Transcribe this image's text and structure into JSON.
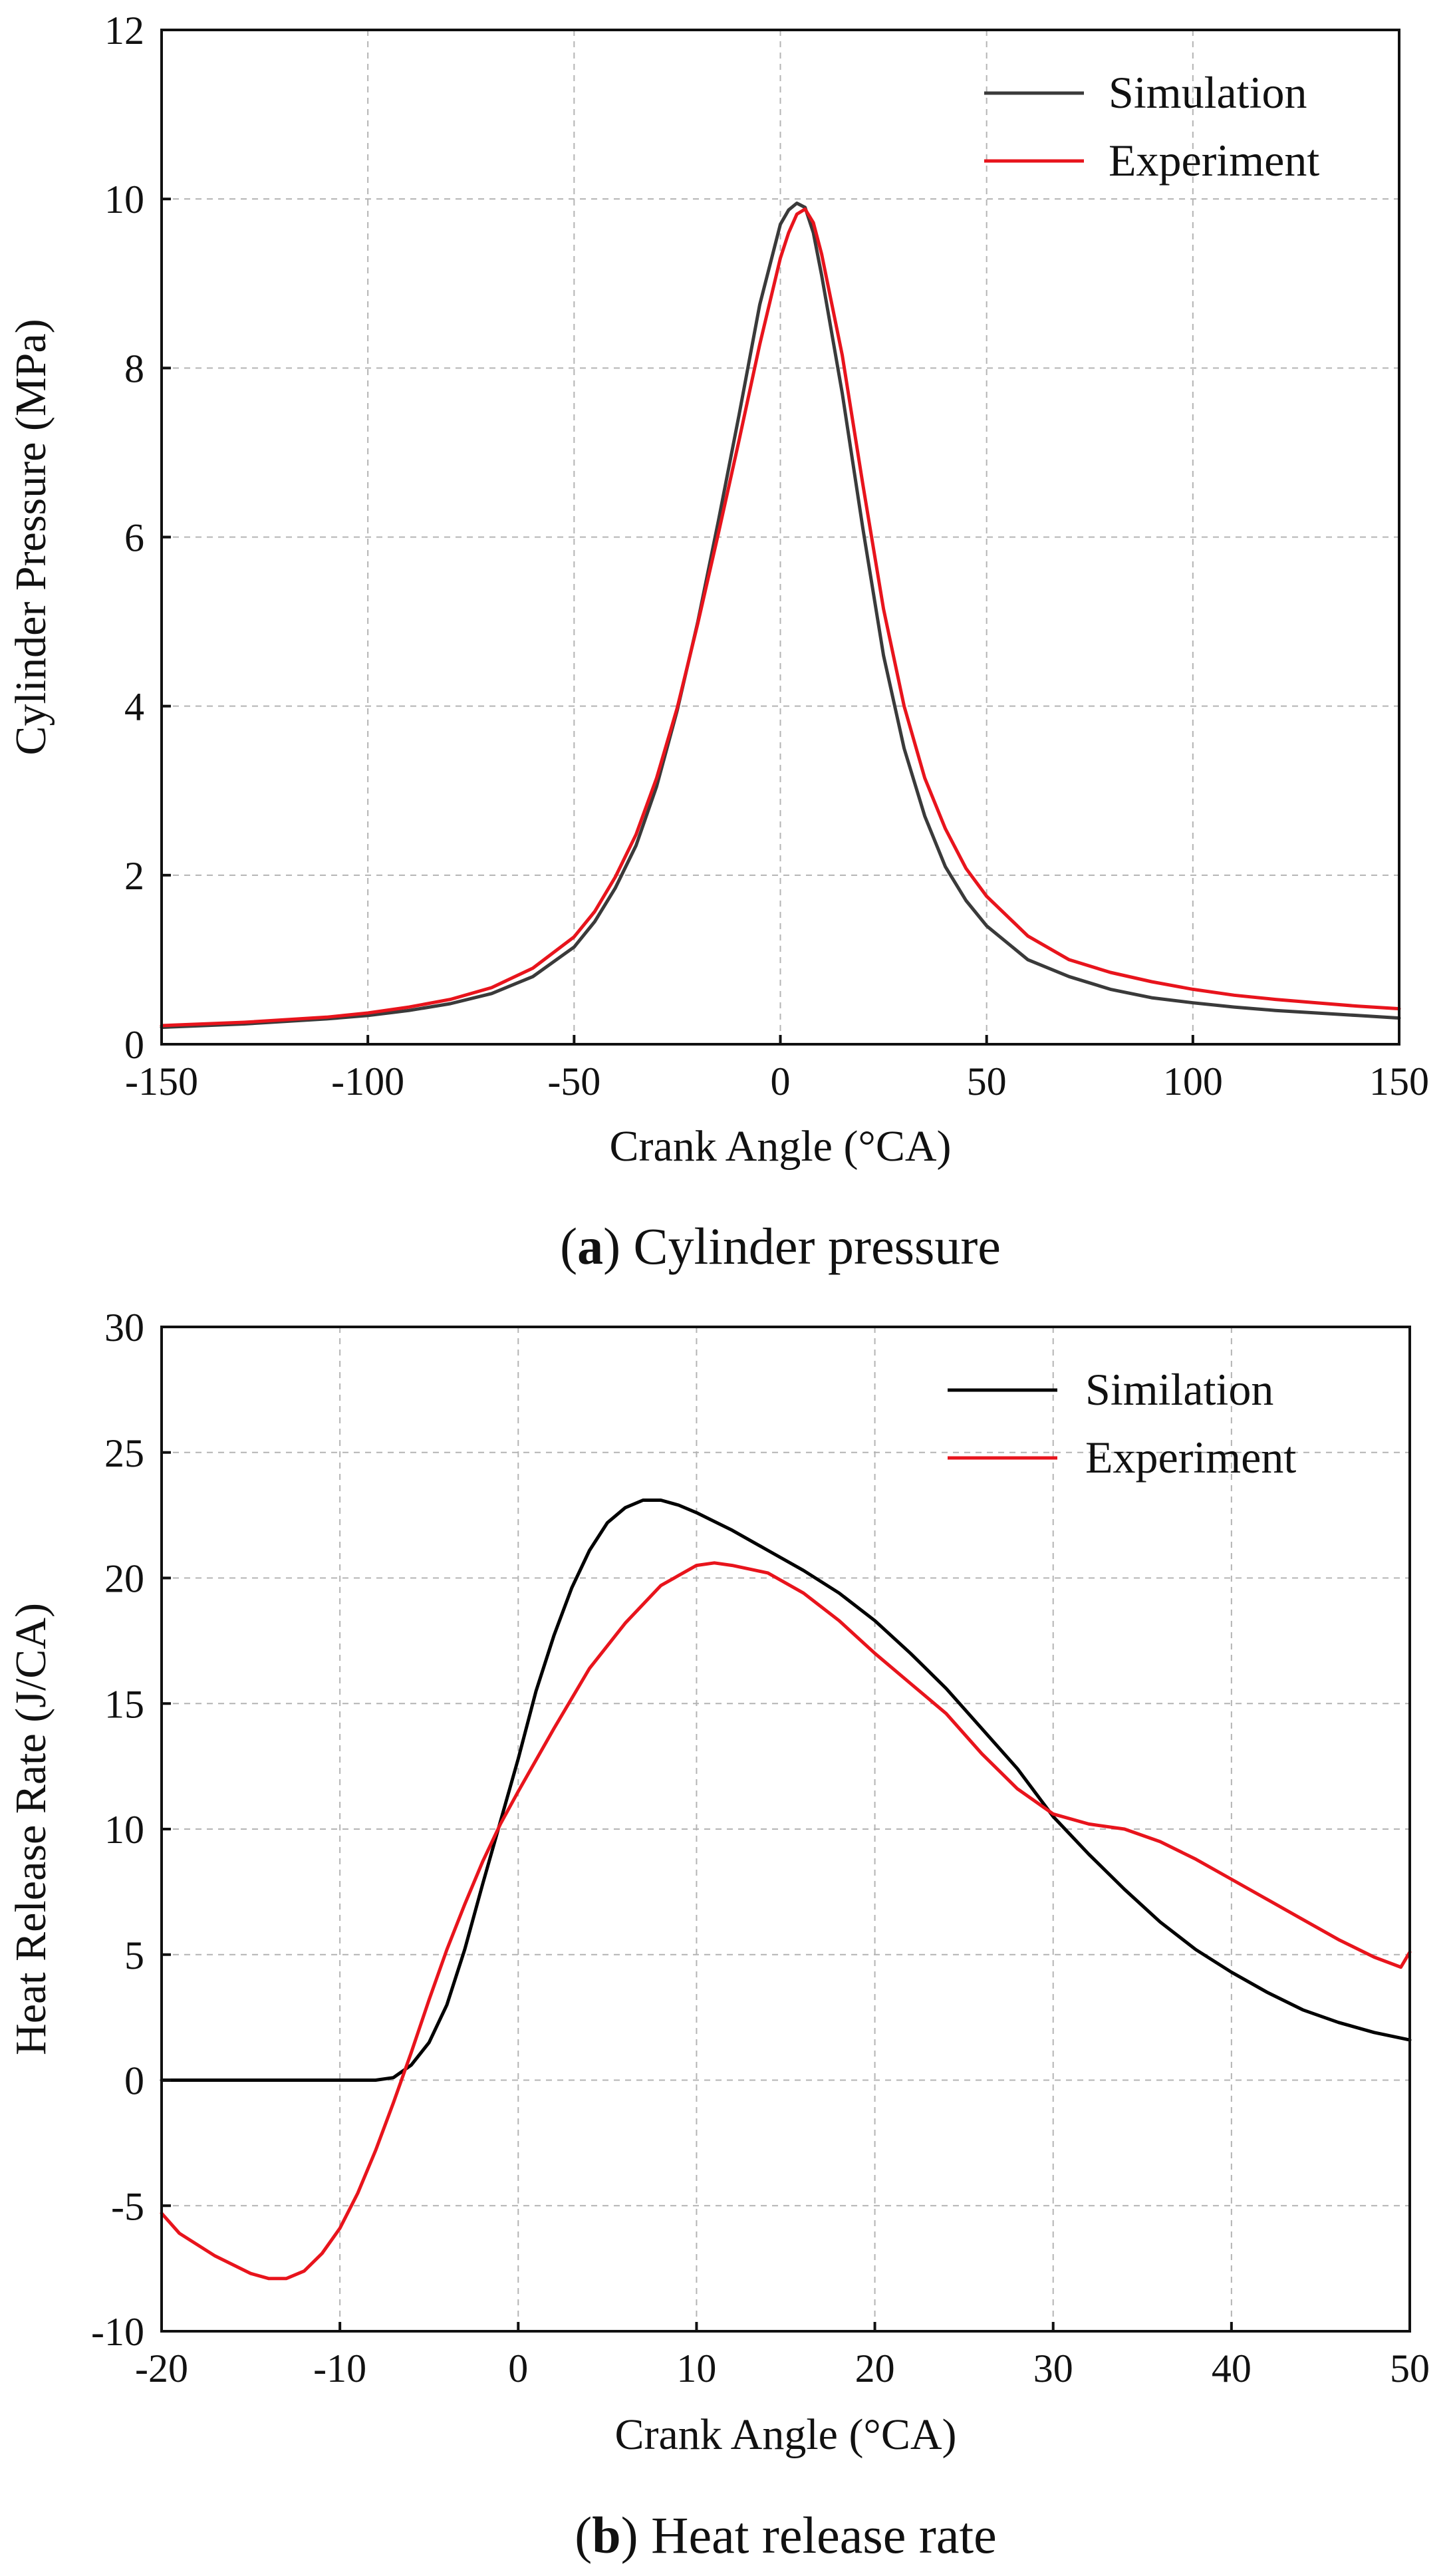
{
  "chart_data": [
    {
      "id": "a",
      "type": "line",
      "caption_letter": "a",
      "caption_text": "Cylinder pressure",
      "xlabel": "Crank Angle (°CA)",
      "ylabel": "Cylinder Pressure (MPa)",
      "xlim": [
        -150,
        150
      ],
      "ylim": [
        0,
        12
      ],
      "xticks": [
        -150,
        -100,
        -50,
        0,
        50,
        100,
        150
      ],
      "yticks": [
        0,
        2,
        4,
        6,
        8,
        10,
        12
      ],
      "grid": true,
      "legend_position": "top-right",
      "series": [
        {
          "name": "Simulation",
          "color": "#3a3a3a",
          "x": [
            -150,
            -130,
            -110,
            -100,
            -90,
            -80,
            -70,
            -60,
            -50,
            -45,
            -40,
            -35,
            -30,
            -25,
            -20,
            -15,
            -10,
            -5,
            0,
            2,
            4,
            6,
            8,
            10,
            15,
            20,
            25,
            30,
            35,
            40,
            45,
            50,
            60,
            70,
            80,
            90,
            100,
            110,
            120,
            130,
            140,
            150
          ],
          "y": [
            0.2,
            0.24,
            0.3,
            0.34,
            0.4,
            0.48,
            0.6,
            0.8,
            1.15,
            1.45,
            1.85,
            2.35,
            3.05,
            3.95,
            5.0,
            6.2,
            7.45,
            8.75,
            9.7,
            9.87,
            9.95,
            9.9,
            9.6,
            9.1,
            7.7,
            6.1,
            4.6,
            3.5,
            2.7,
            2.1,
            1.7,
            1.4,
            1.0,
            0.8,
            0.65,
            0.55,
            0.49,
            0.44,
            0.4,
            0.37,
            0.34,
            0.31
          ]
        },
        {
          "name": "Experiment",
          "color": "#e8141c",
          "x": [
            -150,
            -130,
            -110,
            -100,
            -90,
            -80,
            -70,
            -60,
            -50,
            -45,
            -40,
            -35,
            -30,
            -25,
            -20,
            -15,
            -10,
            -5,
            0,
            2,
            4,
            6,
            8,
            10,
            15,
            20,
            25,
            30,
            35,
            40,
            45,
            50,
            60,
            70,
            80,
            90,
            100,
            110,
            120,
            130,
            140,
            150
          ],
          "y": [
            0.22,
            0.26,
            0.32,
            0.37,
            0.44,
            0.53,
            0.67,
            0.9,
            1.27,
            1.57,
            1.98,
            2.48,
            3.15,
            3.98,
            4.98,
            6.05,
            7.15,
            8.28,
            9.3,
            9.6,
            9.82,
            9.88,
            9.72,
            9.35,
            8.15,
            6.62,
            5.15,
            4.0,
            3.15,
            2.55,
            2.08,
            1.75,
            1.28,
            1.0,
            0.85,
            0.74,
            0.65,
            0.58,
            0.53,
            0.49,
            0.45,
            0.42
          ]
        }
      ]
    },
    {
      "id": "b",
      "type": "line",
      "caption_letter": "b",
      "caption_text": "Heat release rate",
      "xlabel": "Crank Angle (°CA)",
      "ylabel": "Heat Release Rate (J/CA)",
      "xlim": [
        -20,
        50
      ],
      "ylim": [
        -10,
        30
      ],
      "xticks": [
        -20,
        -10,
        0,
        10,
        20,
        30,
        40,
        50
      ],
      "yticks": [
        -10,
        -5,
        0,
        5,
        10,
        15,
        20,
        25,
        30
      ],
      "grid": true,
      "legend_position": "top-right",
      "series": [
        {
          "name": "Similation",
          "color": "#000000",
          "x": [
            -20,
            -10,
            -8,
            -7,
            -6,
            -5,
            -4,
            -3,
            -2,
            -1,
            0,
            1,
            2,
            3,
            4,
            5,
            6,
            7,
            8,
            9,
            10,
            12,
            14,
            16,
            18,
            20,
            22,
            24,
            26,
            28,
            30,
            32,
            34,
            36,
            38,
            40,
            42,
            44,
            46,
            48,
            50
          ],
          "y": [
            0,
            0,
            0,
            0.1,
            0.6,
            1.5,
            3.0,
            5.2,
            7.8,
            10.3,
            12.8,
            15.5,
            17.7,
            19.6,
            21.1,
            22.2,
            22.8,
            23.1,
            23.1,
            22.9,
            22.6,
            21.9,
            21.1,
            20.3,
            19.4,
            18.3,
            17.0,
            15.6,
            14.0,
            12.4,
            10.5,
            9.0,
            7.6,
            6.3,
            5.2,
            4.3,
            3.5,
            2.8,
            2.3,
            1.9,
            1.6
          ]
        },
        {
          "name": "Experiment",
          "color": "#e8141c",
          "x": [
            -20,
            -19,
            -17,
            -15,
            -14,
            -13,
            -12,
            -11,
            -10,
            -9,
            -8,
            -7,
            -6,
            -5,
            -4,
            -3,
            -2,
            -1,
            0,
            2,
            4,
            6,
            8,
            10,
            11,
            12,
            14,
            16,
            18,
            20,
            22,
            24,
            26,
            28,
            30,
            32,
            34,
            36,
            38,
            40,
            42,
            44,
            46,
            48,
            49.5,
            50
          ],
          "y": [
            -5.3,
            -6.1,
            -7.0,
            -7.7,
            -7.9,
            -7.9,
            -7.6,
            -6.9,
            -5.9,
            -4.5,
            -2.8,
            -0.9,
            1.1,
            3.2,
            5.2,
            7.0,
            8.7,
            10.2,
            11.5,
            14.0,
            16.4,
            18.2,
            19.7,
            20.5,
            20.6,
            20.5,
            20.2,
            19.4,
            18.3,
            17.0,
            15.8,
            14.6,
            13.0,
            11.6,
            10.6,
            10.2,
            10.0,
            9.5,
            8.8,
            8.0,
            7.2,
            6.4,
            5.6,
            4.9,
            4.5,
            5.1
          ]
        }
      ]
    }
  ]
}
